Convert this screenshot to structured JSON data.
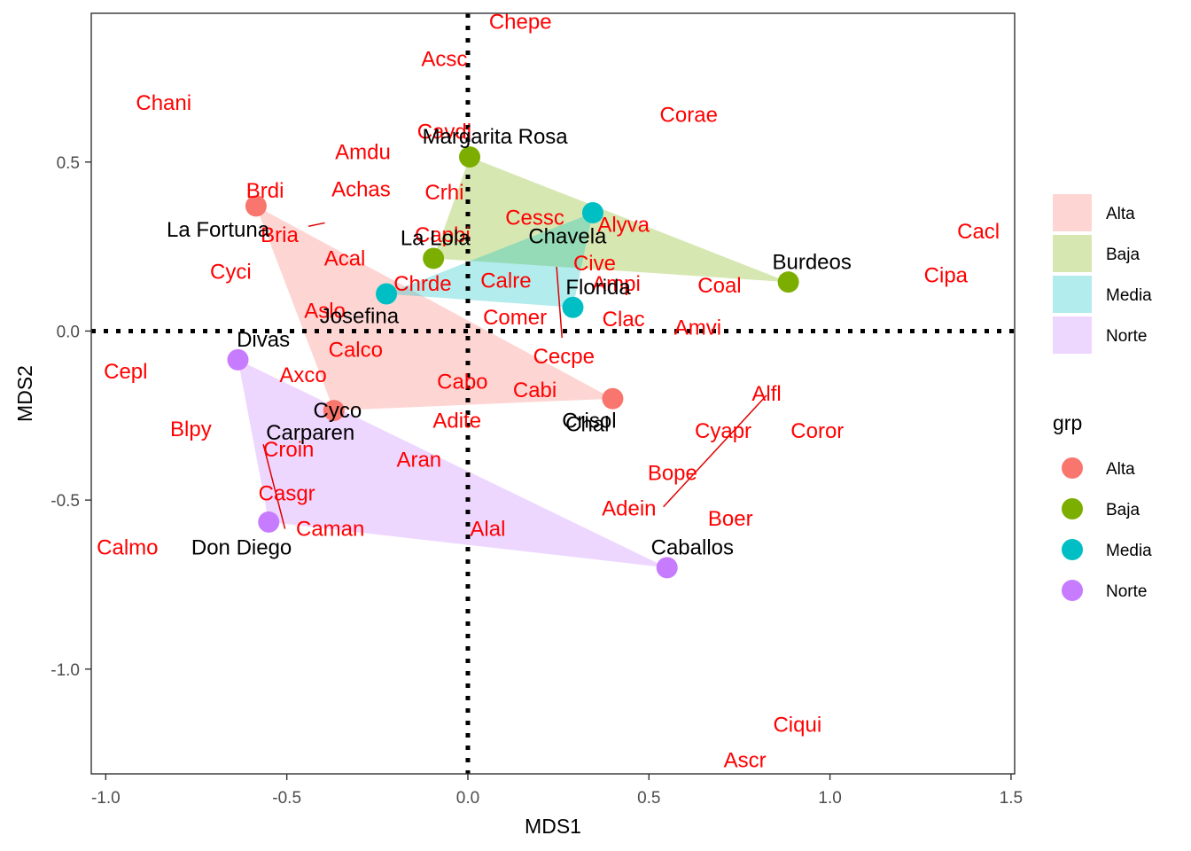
{
  "chart_data": {
    "type": "scatter",
    "xlabel": "MDS1",
    "ylabel": "MDS2",
    "xlim": [
      -1.04,
      1.51
    ],
    "ylim": [
      -1.31,
      0.94
    ],
    "xticks": [
      -1.0,
      -0.5,
      0.0,
      0.5,
      1.0,
      1.5
    ],
    "xtick_labels": [
      "-1.0",
      "-0.5",
      "0.0",
      "0.5",
      "1.0",
      "1.5"
    ],
    "yticks": [
      -1.0,
      -0.5,
      0.0,
      0.5
    ],
    "ytick_labels": [
      "-1.0",
      "-0.5",
      "0.0",
      "0.5"
    ],
    "grid": false,
    "reference_lines": {
      "x": 0,
      "y": 0,
      "style": "dotted"
    },
    "legend_position": "right",
    "legend_fill": {
      "entries": [
        {
          "label": "Alta",
          "color": "#f8766d"
        },
        {
          "label": "Baja",
          "color": "#7cae00"
        },
        {
          "label": "Media",
          "color": "#00bfc4"
        },
        {
          "label": "Norte",
          "color": "#c77cff"
        }
      ]
    },
    "legend_points": {
      "title": "grp",
      "entries": [
        {
          "label": "Alta",
          "color": "#f8766d"
        },
        {
          "label": "Baja",
          "color": "#7cae00"
        },
        {
          "label": "Media",
          "color": "#00bfc4"
        },
        {
          "label": "Norte",
          "color": "#c77cff"
        }
      ]
    },
    "group_colors": {
      "Alta": "#f8766d",
      "Baja": "#7cae00",
      "Media": "#00bfc4",
      "Norte": "#c77cff"
    },
    "hull_opacity": 0.3,
    "sites": [
      {
        "name": "La Fortuna",
        "group": "Alta",
        "x": -0.585,
        "y": 0.37,
        "lx": -0.69,
        "ly": 0.3
      },
      {
        "name": "Cyco",
        "group": "Alta",
        "x": -0.37,
        "y": -0.235,
        "lx": -0.36,
        "ly": -0.235
      },
      {
        "name": "Chal",
        "group": "Alta",
        "x": 0.4,
        "y": -0.2,
        "lx": 0.33,
        "ly": -0.275
      },
      {
        "name": "Margarita Rosa",
        "group": "Baja",
        "x": 0.005,
        "y": 0.515,
        "lx": 0.075,
        "ly": 0.575
      },
      {
        "name": "La Lola",
        "group": "Baja",
        "x": -0.095,
        "y": 0.215,
        "lx": -0.09,
        "ly": 0.275
      },
      {
        "name": "Burdeos",
        "group": "Baja",
        "x": 0.885,
        "y": 0.145,
        "lx": 0.95,
        "ly": 0.205
      },
      {
        "name": "Josefina",
        "group": "Media",
        "x": -0.225,
        "y": 0.11,
        "lx": -0.3,
        "ly": 0.045
      },
      {
        "name": "Chavela",
        "group": "Media",
        "x": 0.345,
        "y": 0.35,
        "lx": 0.275,
        "ly": 0.28
      },
      {
        "name": "Florida",
        "group": "Media",
        "x": 0.29,
        "y": 0.07,
        "lx": 0.36,
        "ly": 0.13
      },
      {
        "name": "Divas",
        "group": "Norte",
        "x": -0.635,
        "y": -0.085,
        "lx": -0.565,
        "ly": -0.025
      },
      {
        "name": "Don Diego",
        "group": "Norte",
        "x": -0.55,
        "y": -0.565,
        "lx": -0.625,
        "ly": -0.64
      },
      {
        "name": "Caballos",
        "group": "Norte",
        "x": 0.55,
        "y": -0.7,
        "lx": 0.62,
        "ly": -0.64
      }
    ],
    "hull_text": [
      {
        "name": "Crisol",
        "x": 0.335,
        "y": -0.265
      },
      {
        "name": "Carparen",
        "x": -0.435,
        "y": -0.3
      }
    ],
    "hulls": [
      {
        "group": "Alta",
        "vertices": [
          [
            -0.585,
            0.37
          ],
          [
            0.4,
            -0.2
          ],
          [
            -0.37,
            -0.235
          ]
        ]
      },
      {
        "group": "Baja",
        "vertices": [
          [
            0.005,
            0.515
          ],
          [
            0.885,
            0.145
          ],
          [
            -0.095,
            0.215
          ]
        ]
      },
      {
        "group": "Media",
        "vertices": [
          [
            0.345,
            0.35
          ],
          [
            0.29,
            0.07
          ],
          [
            -0.225,
            0.11
          ]
        ]
      },
      {
        "group": "Norte",
        "vertices": [
          [
            -0.635,
            -0.085
          ],
          [
            0.55,
            -0.7
          ],
          [
            -0.55,
            -0.565
          ]
        ]
      }
    ],
    "species": [
      {
        "name": "Chepe",
        "x": 0.145,
        "y": 0.915
      },
      {
        "name": "Acsc",
        "x": -0.065,
        "y": 0.805
      },
      {
        "name": "Chani",
        "x": -0.84,
        "y": 0.675
      },
      {
        "name": "Corae",
        "x": 0.61,
        "y": 0.64
      },
      {
        "name": "Cavdi",
        "x": -0.065,
        "y": 0.59
      },
      {
        "name": "Amdu",
        "x": -0.29,
        "y": 0.53
      },
      {
        "name": "Brdi",
        "x": -0.56,
        "y": 0.415
      },
      {
        "name": "Achas",
        "x": -0.295,
        "y": 0.42
      },
      {
        "name": "Crhi",
        "x": -0.065,
        "y": 0.41
      },
      {
        "name": "Cessc",
        "x": 0.185,
        "y": 0.335
      },
      {
        "name": "Alyva",
        "x": 0.43,
        "y": 0.315
      },
      {
        "name": "Bria",
        "x": -0.52,
        "y": 0.285
      },
      {
        "name": "Capbi",
        "x": -0.07,
        "y": 0.285
      },
      {
        "name": "Cacl",
        "x": 1.41,
        "y": 0.295
      },
      {
        "name": "Acal",
        "x": -0.34,
        "y": 0.215
      },
      {
        "name": "Cive",
        "x": 0.35,
        "y": 0.2
      },
      {
        "name": "Cyci",
        "x": -0.655,
        "y": 0.175
      },
      {
        "name": "Cipa",
        "x": 1.32,
        "y": 0.165
      },
      {
        "name": "Chrde",
        "x": -0.125,
        "y": 0.14
      },
      {
        "name": "Calre",
        "x": 0.105,
        "y": 0.15
      },
      {
        "name": "Ampi",
        "x": 0.41,
        "y": 0.14
      },
      {
        "name": "Coal",
        "x": 0.695,
        "y": 0.135
      },
      {
        "name": "Aslo",
        "x": -0.395,
        "y": 0.06
      },
      {
        "name": "Comer",
        "x": 0.13,
        "y": 0.04
      },
      {
        "name": "Clac",
        "x": 0.43,
        "y": 0.035
      },
      {
        "name": "Amvi",
        "x": 0.635,
        "y": 0.01
      },
      {
        "name": "Calco",
        "x": -0.31,
        "y": -0.055
      },
      {
        "name": "Cecpe",
        "x": 0.265,
        "y": -0.075
      },
      {
        "name": "Cepl",
        "x": -0.945,
        "y": -0.12
      },
      {
        "name": "Axco",
        "x": -0.455,
        "y": -0.13
      },
      {
        "name": "Cabo",
        "x": -0.015,
        "y": -0.15
      },
      {
        "name": "Cabi",
        "x": 0.185,
        "y": -0.175
      },
      {
        "name": "Alfl",
        "x": 0.825,
        "y": -0.185
      },
      {
        "name": "Adite",
        "x": -0.03,
        "y": -0.265
      },
      {
        "name": "Blpy",
        "x": -0.765,
        "y": -0.29
      },
      {
        "name": "Cyapr",
        "x": 0.705,
        "y": -0.295
      },
      {
        "name": "Coror",
        "x": 0.965,
        "y": -0.295
      },
      {
        "name": "Croin",
        "x": -0.495,
        "y": -0.35
      },
      {
        "name": "Aran",
        "x": -0.135,
        "y": -0.38
      },
      {
        "name": "Bope",
        "x": 0.565,
        "y": -0.42
      },
      {
        "name": "Casgr",
        "x": -0.5,
        "y": -0.48
      },
      {
        "name": "Adein",
        "x": 0.445,
        "y": -0.525
      },
      {
        "name": "Boer",
        "x": 0.725,
        "y": -0.555
      },
      {
        "name": "Caman",
        "x": -0.38,
        "y": -0.585
      },
      {
        "name": "Alal",
        "x": 0.055,
        "y": -0.585
      },
      {
        "name": "Calmo",
        "x": -0.94,
        "y": -0.64
      },
      {
        "name": "Ciqui",
        "x": 0.91,
        "y": -1.165
      },
      {
        "name": "Ascr",
        "x": 0.765,
        "y": -1.27
      }
    ],
    "leader_lines": [
      {
        "from": [
          -0.44,
          0.31
        ],
        "to": [
          -0.395,
          0.32
        ]
      },
      {
        "from": [
          0.245,
          0.19
        ],
        "to": [
          0.26,
          -0.02
        ]
      },
      {
        "from": [
          0.825,
          -0.19
        ],
        "to": [
          0.54,
          -0.52
        ]
      },
      {
        "from": [
          -0.565,
          -0.335
        ],
        "to": [
          -0.505,
          -0.585
        ]
      }
    ]
  }
}
